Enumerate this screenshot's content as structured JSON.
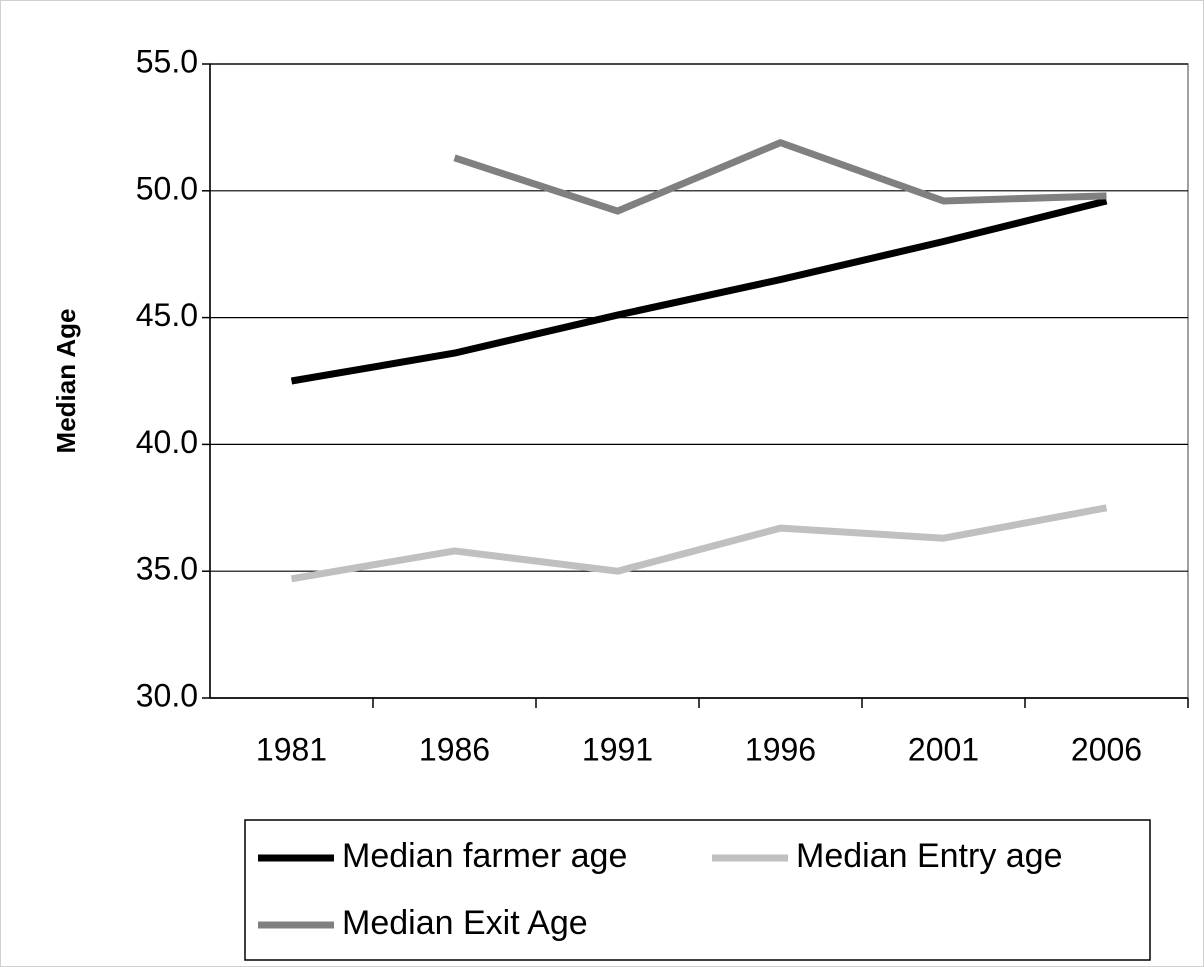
{
  "chart_data": {
    "type": "line",
    "y_label": "Median Age",
    "categories": [
      "1981",
      "1986",
      "1991",
      "1996",
      "2001",
      "2006"
    ],
    "series": [
      {
        "name": "Median farmer age",
        "color": "#000000",
        "values": [
          42.5,
          43.6,
          45.1,
          46.5,
          48.0,
          49.6
        ]
      },
      {
        "name": "Median Entry age",
        "color": "#c0c0c0",
        "values": [
          34.7,
          35.8,
          35.0,
          36.7,
          36.3,
          37.5
        ]
      },
      {
        "name": "Median Exit Age",
        "color": "#808080",
        "values": [
          null,
          51.3,
          49.2,
          51.9,
          49.6,
          49.8
        ]
      }
    ],
    "ylim": [
      30,
      55
    ],
    "yticks": [
      {
        "value": 30,
        "label": "30.0"
      },
      {
        "value": 35,
        "label": "35.0"
      },
      {
        "value": 40,
        "label": "40.0"
      },
      {
        "value": 45,
        "label": "45.0"
      },
      {
        "value": 50,
        "label": "50.0"
      },
      {
        "value": 55,
        "label": "55.0"
      }
    ],
    "grid": true,
    "legend": "bottom"
  }
}
